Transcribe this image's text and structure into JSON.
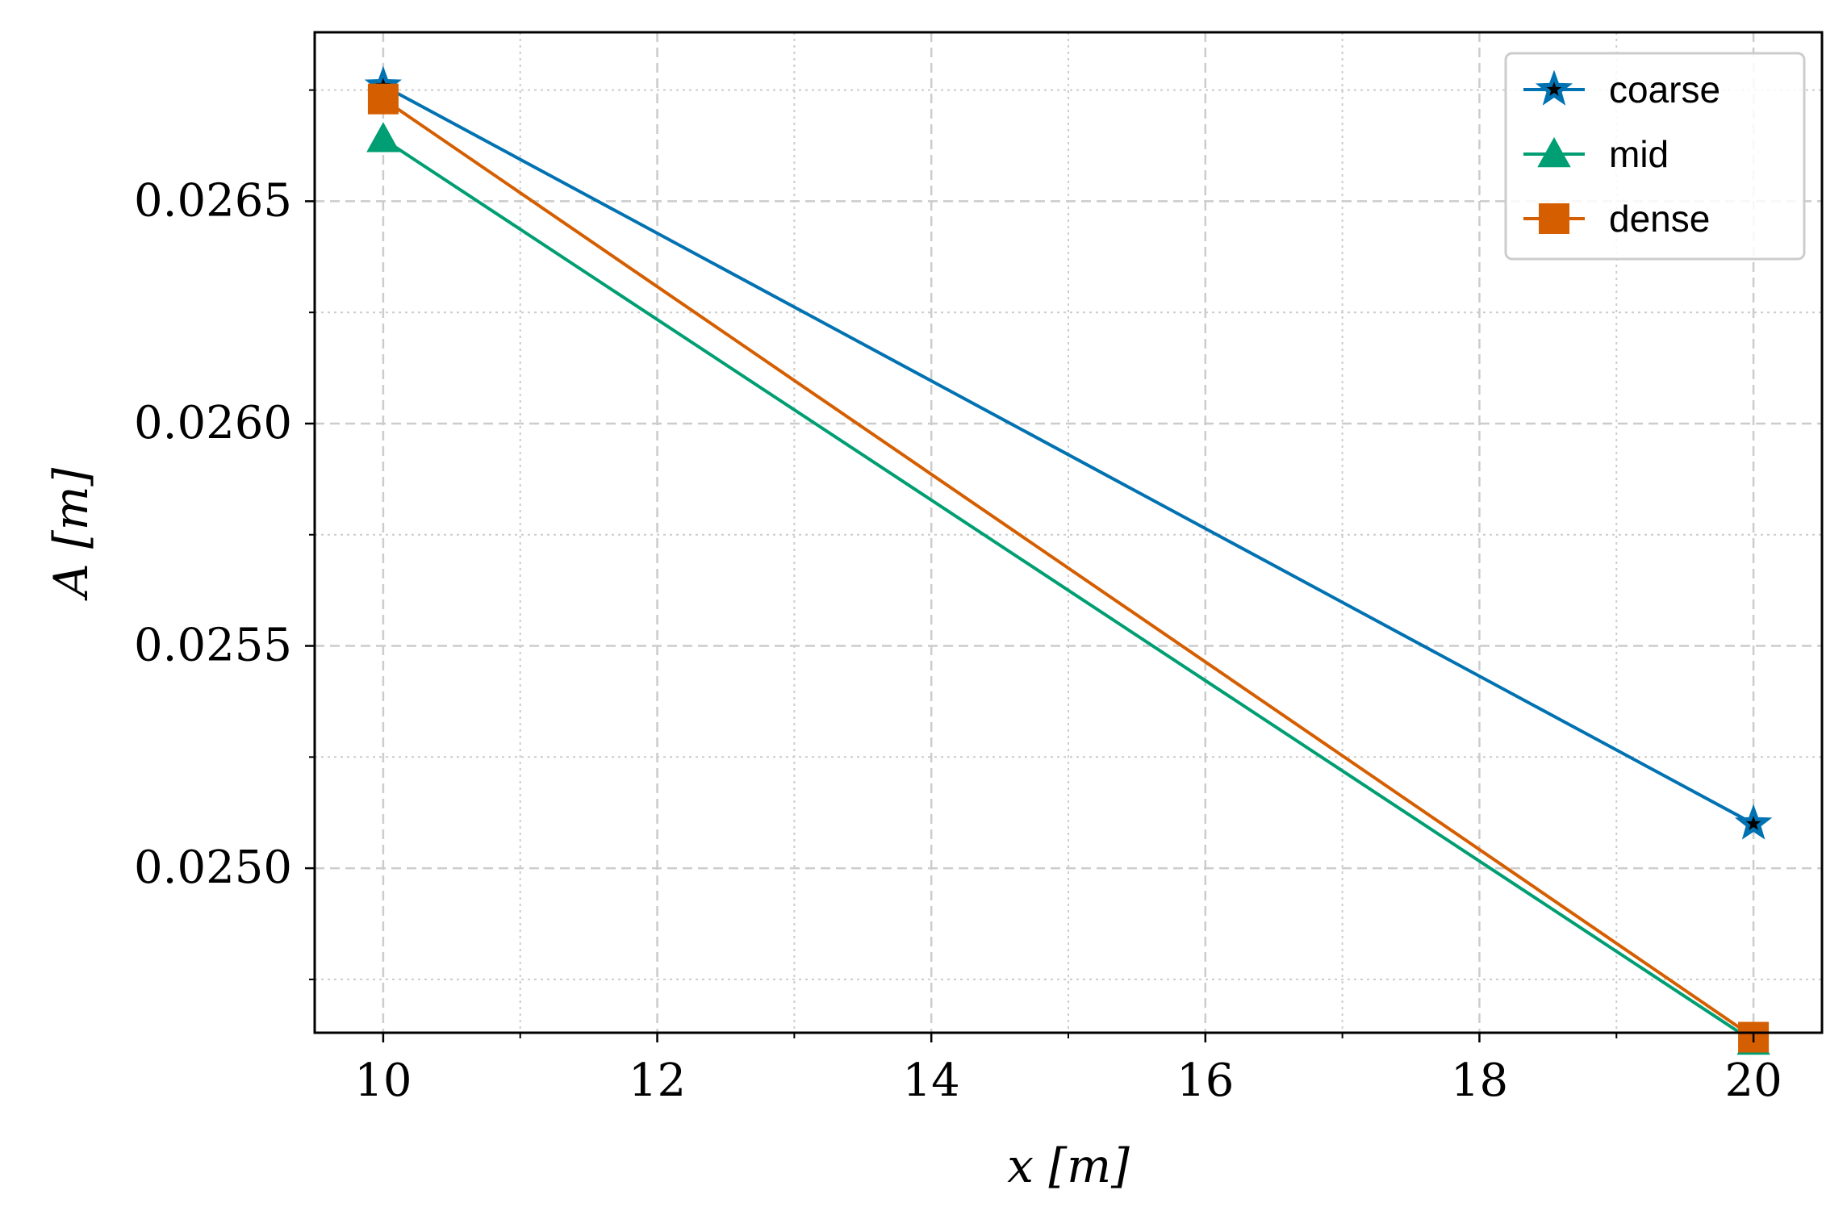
{
  "chart_data": {
    "type": "line",
    "xlabel": "x [m]",
    "ylabel": "A [m]",
    "xlim": [
      9.5,
      20.5
    ],
    "ylim": [
      0.02463,
      0.02688
    ],
    "x_ticks": [
      10,
      12,
      14,
      16,
      18,
      20
    ],
    "x_tick_labels": [
      "10",
      "12",
      "14",
      "16",
      "18",
      "20"
    ],
    "x_minor_ticks": [
      11,
      13,
      15,
      17,
      19
    ],
    "y_ticks": [
      0.025,
      0.0255,
      0.026,
      0.0265
    ],
    "y_tick_labels": [
      "0.0250",
      "0.0255",
      "0.0260",
      "0.0265"
    ],
    "y_minor_ticks": [
      0.02475,
      0.02525,
      0.02575,
      0.02625,
      0.02675
    ],
    "grid": true,
    "minor_grid": true,
    "legend_position": "top-right",
    "series": [
      {
        "name": "coarse",
        "marker": "star",
        "color": "#0072B2",
        "x": [
          10,
          20
        ],
        "values": [
          0.02676,
          0.0251
        ]
      },
      {
        "name": "mid",
        "marker": "triangle",
        "color": "#009E73",
        "x": [
          10,
          20
        ],
        "values": [
          0.02664,
          0.02461
        ]
      },
      {
        "name": "dense",
        "marker": "square",
        "color": "#D55E00",
        "x": [
          10,
          20
        ],
        "values": [
          0.02673,
          0.02462
        ]
      }
    ]
  }
}
